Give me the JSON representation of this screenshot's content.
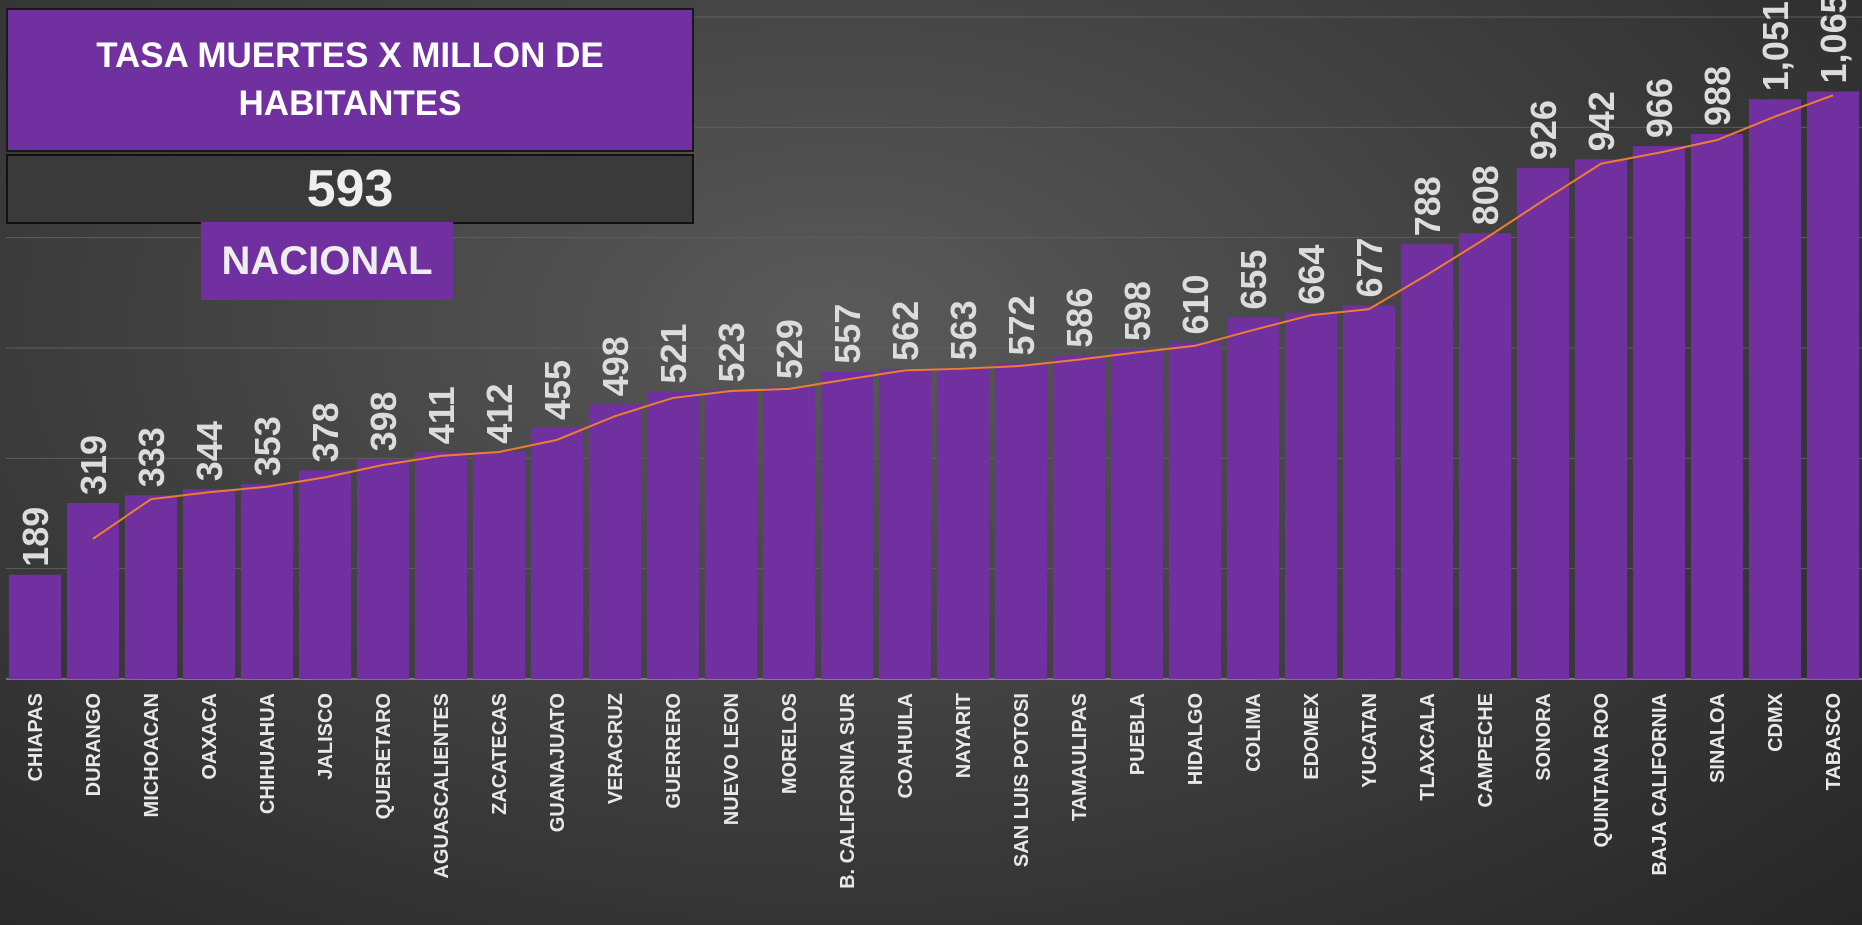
{
  "chart_data": {
    "type": "bar",
    "title": "TASA MUERTES X MILLON DE HABITANTES",
    "national_value": 593,
    "national_label": "NACIONAL",
    "categories": [
      "CHIAPAS",
      "DURANGO",
      "MICHOACAN",
      "OAXACA",
      "CHIHUAHUA",
      "JALISCO",
      "QUERETARO",
      "AGUASCALIENTES",
      "ZACATECAS",
      "GUANAJUATO",
      "VERACRUZ",
      "GUERRERO",
      "NUEVO LEON",
      "MORELOS",
      "B. CALIFORNIA SUR",
      "COAHUILA",
      "NAYARIT",
      "SAN LUIS POTOSI",
      "TAMAULIPAS",
      "PUEBLA",
      "HIDALGO",
      "COLIMA",
      "EDOMEX",
      "YUCATAN",
      "TLAXCALA",
      "CAMPECHE",
      "SONORA",
      "QUINTANA ROO",
      "BAJA CALIFORNIA",
      "SINALOA",
      "CDMX",
      "TABASCO"
    ],
    "values": [
      189,
      319,
      333,
      344,
      353,
      378,
      398,
      411,
      412,
      455,
      498,
      521,
      523,
      529,
      557,
      562,
      563,
      572,
      586,
      598,
      610,
      655,
      664,
      677,
      788,
      808,
      926,
      942,
      966,
      988,
      1051,
      1065
    ],
    "value_labels": [
      "189",
      "319",
      "333",
      "344",
      "353",
      "378",
      "398",
      "411",
      "412",
      "455",
      "498",
      "521",
      "523",
      "529",
      "557",
      "562",
      "563",
      "572",
      "586",
      "598",
      "610",
      "655",
      "664",
      "677",
      "788",
      "808",
      "926",
      "942",
      "966",
      "988",
      "1,051",
      "1,065"
    ],
    "color": "#7030a0",
    "trend": {
      "color": "#ed7d31",
      "values": [
        null,
        254,
        326,
        338.5,
        348.5,
        365.5,
        388,
        404.5,
        411.5,
        433.5,
        476.5,
        509.5,
        522,
        526,
        543,
        559.5,
        562.5,
        567.5,
        579,
        592,
        604,
        632.5,
        659.5,
        670.5,
        732.5,
        798,
        867,
        934,
        954,
        977,
        1019.5,
        1058
      ]
    },
    "ylim": [
      0,
      1200
    ],
    "yticks": [
      0,
      200,
      400,
      600,
      800,
      1000,
      1200
    ],
    "grid": true
  }
}
